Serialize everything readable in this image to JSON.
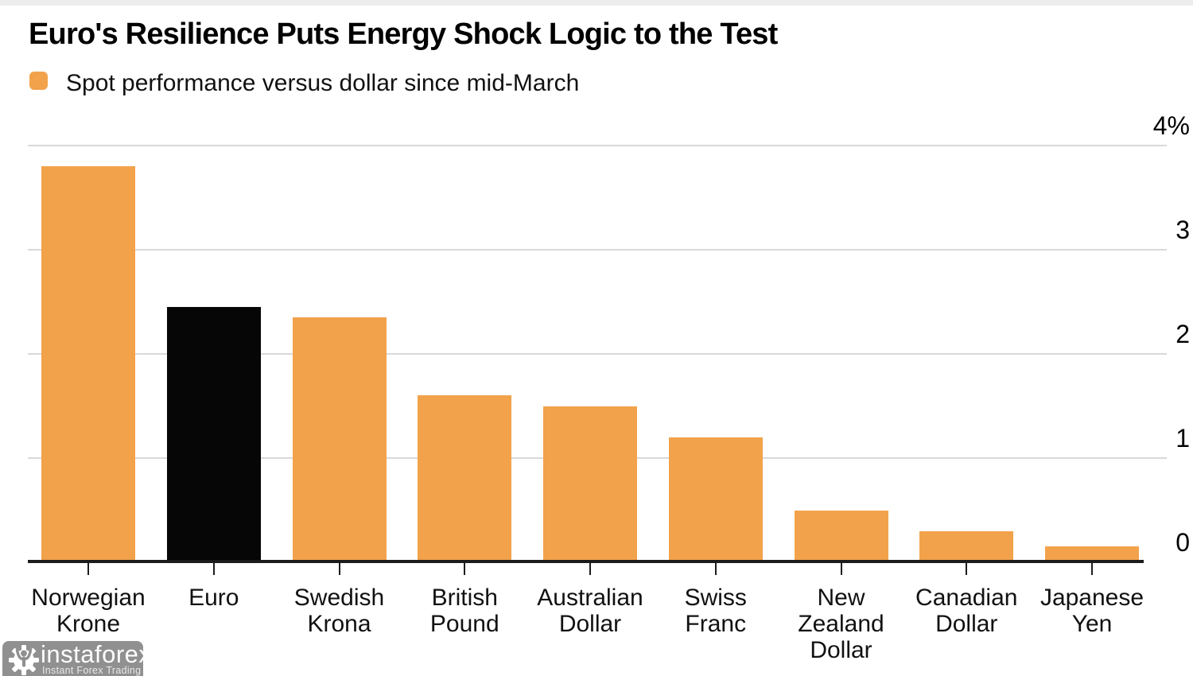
{
  "title": "Euro's Resilience Puts Energy Shock Logic to the Test",
  "legend": {
    "label": "Spot performance versus dollar since mid-March",
    "swatch_color": "#F2A24B"
  },
  "colors": {
    "bar_default": "#F2A24B",
    "bar_highlight": "#060606",
    "gridline": "#D9D9D9",
    "axis": "#1C1C1C"
  },
  "chart_data": {
    "type": "bar",
    "title": "Euro's Resilience Puts Energy Shock Logic to the Test",
    "legend_entries": [
      "Spot performance versus dollar since mid-March"
    ],
    "legend_position": "top-left",
    "categories": [
      "Norwegian Krone",
      "Euro",
      "Swedish Krona",
      "British Pound",
      "Australian Dollar",
      "Swiss Franc",
      "New Zealand Dollar",
      "Canadian Dollar",
      "Japanese Yen"
    ],
    "category_lines": [
      [
        "Norwegian",
        "Krone"
      ],
      [
        "Euro"
      ],
      [
        "Swedish",
        "Krona"
      ],
      [
        "British",
        "Pound"
      ],
      [
        "Australian",
        "Dollar"
      ],
      [
        "Swiss",
        "Franc"
      ],
      [
        "New",
        "Zealand",
        "Dollar"
      ],
      [
        "Canadian",
        "Dollar"
      ],
      [
        "Japanese",
        "Yen"
      ]
    ],
    "values": [
      3.8,
      2.45,
      2.35,
      1.6,
      1.5,
      1.2,
      0.5,
      0.3,
      0.15
    ],
    "unit": "%",
    "highlight_index": 1,
    "highlight_category": "Euro",
    "yticks": [
      {
        "label": "4%",
        "value": 4
      },
      {
        "label": "3",
        "value": 3
      },
      {
        "label": "2",
        "value": 2
      },
      {
        "label": "1",
        "value": 1
      },
      {
        "label": "0",
        "value": 0
      }
    ],
    "ylim": [
      0,
      4
    ],
    "grid": true,
    "ylabel": "",
    "xlabel": ""
  },
  "watermark": {
    "brand": "instaforex",
    "tagline": "Instant Forex Trading",
    "icon": "gear-person-icon",
    "badge_color": "#909090"
  }
}
